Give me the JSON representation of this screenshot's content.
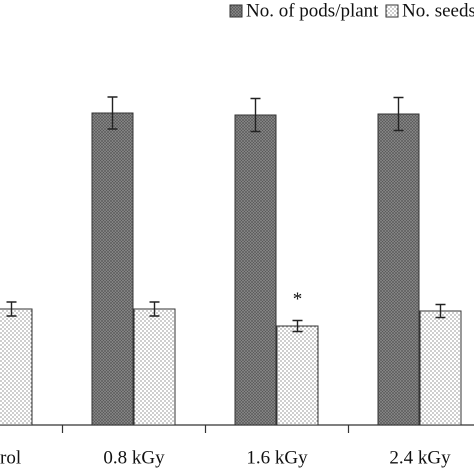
{
  "chart_data": {
    "type": "bar",
    "categories": [
      "rol",
      "0.8 kGy",
      "1.6 kGy",
      "2.4 kGy"
    ],
    "series": [
      {
        "name": "No. of pods/plant",
        "color": "#8a8a8a",
        "values": [
          null,
          31.2,
          31.0,
          31.1
        ],
        "errors": [
          null,
          1.6,
          1.65,
          1.65
        ]
      },
      {
        "name": "No. seeds/pod",
        "color": "#ffffff",
        "values": [
          11.6,
          11.6,
          9.9,
          11.4
        ],
        "errors": [
          0.7,
          0.7,
          0.55,
          0.65
        ]
      }
    ],
    "ylim": [
      0,
      42.5
    ],
    "legend": "top-right",
    "annotations": [
      {
        "text": "*",
        "category": "1.6 kGy",
        "series": "No. seeds/pod"
      }
    ]
  }
}
